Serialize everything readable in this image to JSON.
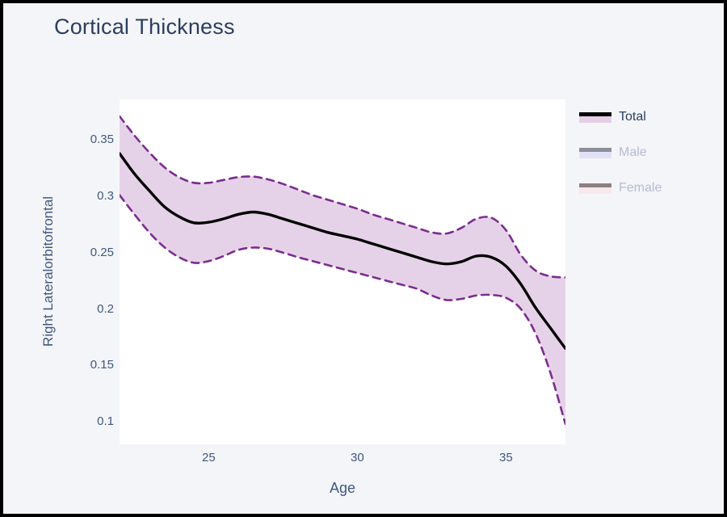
{
  "page": {
    "background": "#f4f5f9",
    "frame_color": "#000000",
    "title": "Cortical Thickness",
    "title_color": "#2c3e5e"
  },
  "axes": {
    "tick_color": "#40587e",
    "y_title": "Right Lateralorbitofrontal",
    "x_title": "Age"
  },
  "legend": {
    "items": [
      {
        "label": "Total",
        "active": true,
        "line_color": "#000000",
        "band_color": "#e4cfe6",
        "label_color": "#2b3f5e"
      },
      {
        "label": "Male",
        "active": false,
        "line_color": "#8a8f9a",
        "band_color": "#e1e2f8",
        "label_color": "#b5bdd0"
      },
      {
        "label": "Female",
        "active": false,
        "line_color": "#8d8085",
        "band_color": "#f8e7eb",
        "label_color": "#b5bdd0"
      }
    ]
  },
  "chart_data": {
    "type": "line",
    "title": "Cortical Thickness",
    "xlabel": "Age",
    "ylabel": "Right Lateralorbitofrontal",
    "x_range": [
      22,
      37
    ],
    "y_range": [
      0.08,
      0.386
    ],
    "x_ticks": [
      25,
      30,
      35
    ],
    "y_ticks": [
      0.35,
      0.3,
      0.25,
      0.2,
      0.15,
      0.1
    ],
    "grid": false,
    "legend_position": "right-top",
    "plot_bg": "#ffffff",
    "band_fill": "#e6d2e8",
    "band_edge_color": "#7b2d8e",
    "line_color": "#000000",
    "x": [
      22,
      22.5,
      23,
      23.5,
      24,
      24.5,
      25,
      25.5,
      26,
      26.5,
      27,
      27.5,
      28,
      28.5,
      29,
      29.5,
      30,
      30.5,
      31,
      31.5,
      32,
      32.5,
      33,
      33.5,
      34,
      34.5,
      35,
      35.5,
      36,
      36.5,
      37
    ],
    "series": [
      {
        "name": "Total",
        "style": "solid",
        "color": "#000000",
        "values": [
          0.338,
          0.32,
          0.305,
          0.291,
          0.282,
          0.2765,
          0.277,
          0.28,
          0.284,
          0.286,
          0.284,
          0.28,
          0.276,
          0.272,
          0.268,
          0.265,
          0.262,
          0.258,
          0.254,
          0.25,
          0.246,
          0.242,
          0.24,
          0.242,
          0.247,
          0.246,
          0.238,
          0.222,
          0.201,
          0.183,
          0.165
        ]
      },
      {
        "name": "Total CI upper",
        "style": "dashed",
        "color": "#7b2d8e",
        "values": [
          0.371,
          0.354,
          0.339,
          0.326,
          0.317,
          0.312,
          0.312,
          0.3145,
          0.317,
          0.3175,
          0.315,
          0.311,
          0.306,
          0.301,
          0.297,
          0.293,
          0.289,
          0.284,
          0.28,
          0.276,
          0.272,
          0.268,
          0.267,
          0.272,
          0.28,
          0.281,
          0.27,
          0.248,
          0.234,
          0.229,
          0.228
        ]
      },
      {
        "name": "Total CI lower",
        "style": "dashed",
        "color": "#7b2d8e",
        "values": [
          0.301,
          0.284,
          0.268,
          0.255,
          0.246,
          0.241,
          0.2425,
          0.247,
          0.2525,
          0.2545,
          0.2535,
          0.25,
          0.246,
          0.2425,
          0.239,
          0.2355,
          0.232,
          0.2285,
          0.225,
          0.2215,
          0.218,
          0.212,
          0.208,
          0.209,
          0.212,
          0.2125,
          0.21,
          0.2,
          0.178,
          0.143,
          0.098
        ]
      }
    ]
  }
}
